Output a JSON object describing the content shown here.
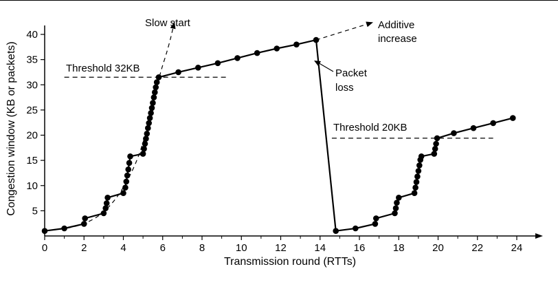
{
  "chart_data": {
    "type": "line",
    "title": "",
    "xlabel": "Transmission round (RTTs)",
    "ylabel": "Congestion window (KB or packets)",
    "xlim": [
      0,
      24
    ],
    "ylim": [
      0,
      40
    ],
    "x_ticks": [
      0,
      2,
      4,
      6,
      8,
      10,
      12,
      14,
      16,
      18,
      20,
      22,
      24
    ],
    "y_ticks": [
      5,
      10,
      15,
      20,
      25,
      30,
      35,
      40
    ],
    "grid": false,
    "legend": "none",
    "series": [
      {
        "style": "solid-with-markers",
        "color": "#000000",
        "points": [
          [
            0,
            1
          ],
          [
            1,
            1.5
          ],
          [
            2,
            2.4
          ],
          [
            2.05,
            3.5
          ],
          [
            3,
            4.5
          ],
          [
            3.1,
            5.5
          ],
          [
            3.15,
            6.5
          ],
          [
            3.2,
            7.6
          ],
          [
            4,
            8.5
          ],
          [
            4.1,
            9.6
          ],
          [
            4.15,
            10.8
          ],
          [
            4.2,
            12
          ],
          [
            4.25,
            13.2
          ],
          [
            4.3,
            14.5
          ],
          [
            4.35,
            15.8
          ],
          [
            5,
            16.3
          ],
          [
            5.05,
            17.3
          ],
          [
            5.1,
            18.3
          ],
          [
            5.15,
            19.3
          ],
          [
            5.2,
            20.3
          ],
          [
            5.25,
            21.4
          ],
          [
            5.3,
            22.4
          ],
          [
            5.35,
            23.4
          ],
          [
            5.4,
            24.4
          ],
          [
            5.45,
            25.4
          ],
          [
            5.5,
            26.4
          ],
          [
            5.55,
            27.5
          ],
          [
            5.6,
            28.5
          ],
          [
            5.65,
            29.5
          ],
          [
            5.7,
            30.5
          ],
          [
            5.8,
            31.5
          ],
          [
            6.8,
            32.5
          ],
          [
            7.8,
            33.4
          ],
          [
            8.8,
            34.3
          ],
          [
            9.8,
            35.3
          ],
          [
            10.8,
            36.3
          ],
          [
            11.8,
            37.2
          ],
          [
            12.8,
            38
          ],
          [
            13.8,
            38.9
          ],
          [
            14.8,
            1
          ],
          [
            15.8,
            1.5
          ],
          [
            16.8,
            2.4
          ],
          [
            16.85,
            3.5
          ],
          [
            17.8,
            4.5
          ],
          [
            17.85,
            5.5
          ],
          [
            17.9,
            6.6
          ],
          [
            18,
            7.6
          ],
          [
            18.8,
            8.5
          ],
          [
            18.85,
            9.6
          ],
          [
            18.9,
            10.7
          ],
          [
            18.95,
            11.8
          ],
          [
            19,
            12.9
          ],
          [
            19.05,
            14
          ],
          [
            19.1,
            15.1
          ],
          [
            19.15,
            15.8
          ],
          [
            19.8,
            16.3
          ],
          [
            19.85,
            17.3
          ],
          [
            19.9,
            18.3
          ],
          [
            19.95,
            19.4
          ],
          [
            20.8,
            20.4
          ],
          [
            21.8,
            21.4
          ],
          [
            22.8,
            22.4
          ],
          [
            23.8,
            23.4
          ]
        ]
      },
      {
        "style": "dashed",
        "color": "#000000",
        "points": [
          [
            0,
            1
          ],
          [
            1,
            1.4
          ],
          [
            2,
            2.3
          ],
          [
            3,
            4.5
          ],
          [
            4,
            9.2
          ],
          [
            5,
            17.5
          ],
          [
            5.8,
            31.5
          ],
          [
            6.3,
            37.5
          ],
          [
            6.6,
            42.5
          ]
        ]
      },
      {
        "style": "dashed",
        "color": "#000000",
        "points": [
          [
            13.8,
            38.9
          ],
          [
            16.7,
            42.4
          ]
        ]
      }
    ],
    "thresholds": [
      {
        "label": "Threshold 32KB",
        "y": 31.5,
        "x_from": 1,
        "x_to": 9.3
      },
      {
        "label": "Threshold 20KB",
        "y": 19.4,
        "x_from": 14.6,
        "x_to": 22.8
      }
    ],
    "annotations": {
      "slow_start": "Slow start",
      "additive_line1": "Additive",
      "additive_line2": "increase",
      "loss_line1": "Packet",
      "loss_line2": "loss"
    }
  }
}
